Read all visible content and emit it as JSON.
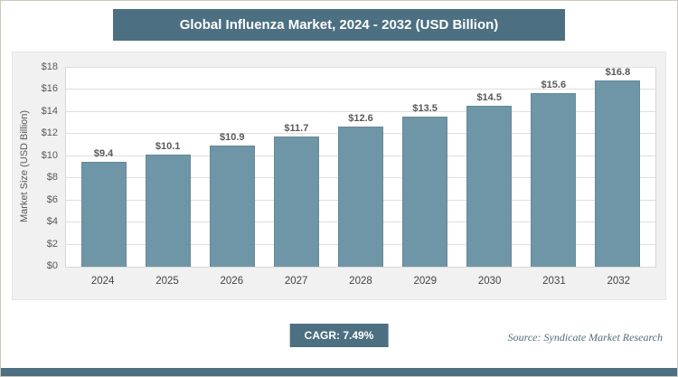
{
  "chart_data": {
    "type": "bar",
    "title": "Global Influenza Market, 2024 - 2032 (USD Billion)",
    "ylabel": "Market Size (USD Billion)",
    "xlabel": "",
    "categories": [
      "2024",
      "2025",
      "2026",
      "2027",
      "2028",
      "2029",
      "2030",
      "2031",
      "2032"
    ],
    "values": [
      9.4,
      10.1,
      10.9,
      11.7,
      12.6,
      13.5,
      14.5,
      15.6,
      16.8
    ],
    "value_labels": [
      "$9.4",
      "$10.1",
      "$10.9",
      "$11.7",
      "$12.6",
      "$13.5",
      "$14.5",
      "$15.6",
      "$16.8"
    ],
    "ylim": [
      0,
      18
    ],
    "ytick_values": [
      0,
      2,
      4,
      6,
      8,
      10,
      12,
      14,
      16,
      18
    ],
    "ytick_labels": [
      "$0",
      "$2",
      "$4",
      "$6",
      "$8",
      "$10",
      "$12",
      "$14",
      "$16",
      "$18"
    ],
    "grid": true,
    "legend": "none",
    "bar_color": "#6f96a7"
  },
  "footer": {
    "cagr_label": "CAGR: 7.49%",
    "source": "Source: Syndicate Market Research"
  },
  "colors": {
    "header_bg": "#4c7082",
    "bar_fill": "#6f96a7",
    "bar_border": "#64899a",
    "gridline": "#dedede",
    "axis_text": "#595959"
  }
}
